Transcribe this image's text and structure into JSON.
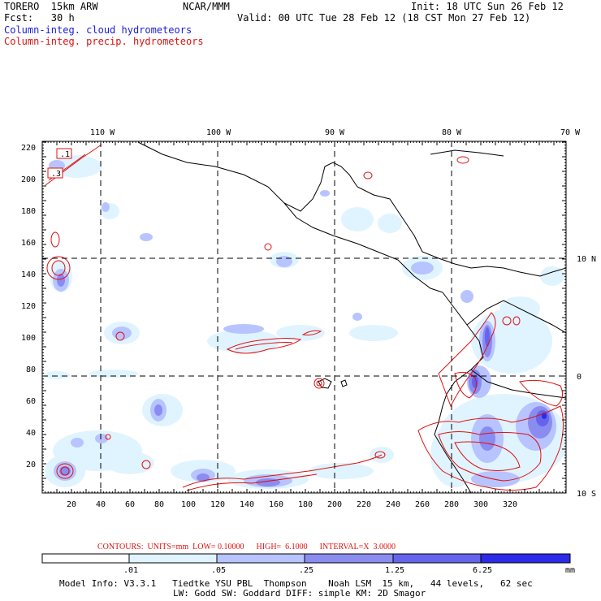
{
  "header": {
    "model": "TORERO  15km ARW",
    "org": "NCAR/MMM",
    "init": "Init: 18 UTC Sun 26 Feb 12",
    "fcst": "Fcst:   30 h",
    "valid": "Valid: 00 UTC Tue 28 Feb 12 (18 CST Mon 27 Feb 12)",
    "field_cloud": "Column-integ. cloud hydrometeors",
    "field_precip": "Column-integ. precip. hydrometeors"
  },
  "colors": {
    "cloud_label": "#1a1adc",
    "precip_label": "#e01010",
    "contour": "#e01010",
    "shade1": "#e0f4ff",
    "shade2": "#b8c4ff",
    "shade3": "#8a8cf0",
    "shade4": "#6464ec",
    "shade5": "#2b2be8"
  },
  "axes": {
    "lon_top": [
      "110 W",
      "100 W",
      "90 W",
      "80 W",
      "70 W"
    ],
    "lat_right": [
      "10 N",
      "0",
      "10 S"
    ],
    "x_ticks": [
      "20",
      "40",
      "60",
      "80",
      "100",
      "120",
      "140",
      "160",
      "180",
      "200",
      "220",
      "240",
      "260",
      "280",
      "300",
      "320"
    ],
    "y_ticks": [
      "220",
      "200",
      "180",
      "160",
      "140",
      "120",
      "100",
      "80",
      "60",
      "40",
      "20"
    ],
    "box_labels": [
      ".1",
      ".3"
    ]
  },
  "contour_info": {
    "text": "CONTOURS:  UNITS=mm  LOW= 0.10000      HIGH=  6.1000      INTERVAL=X  3.0000"
  },
  "legend": {
    "boundaries": [
      ".01",
      ".05",
      ".25",
      "1.25",
      "6.25"
    ],
    "units": "mm"
  },
  "footer": {
    "line1": "Model Info: V3.3.1   Tiedtke YSU PBL  Thompson    Noah LSM  15 km,   44 levels,   62 sec",
    "line2": "LW: Godd SW: Goddard DIFF: simple KM: 2D Smagor"
  }
}
